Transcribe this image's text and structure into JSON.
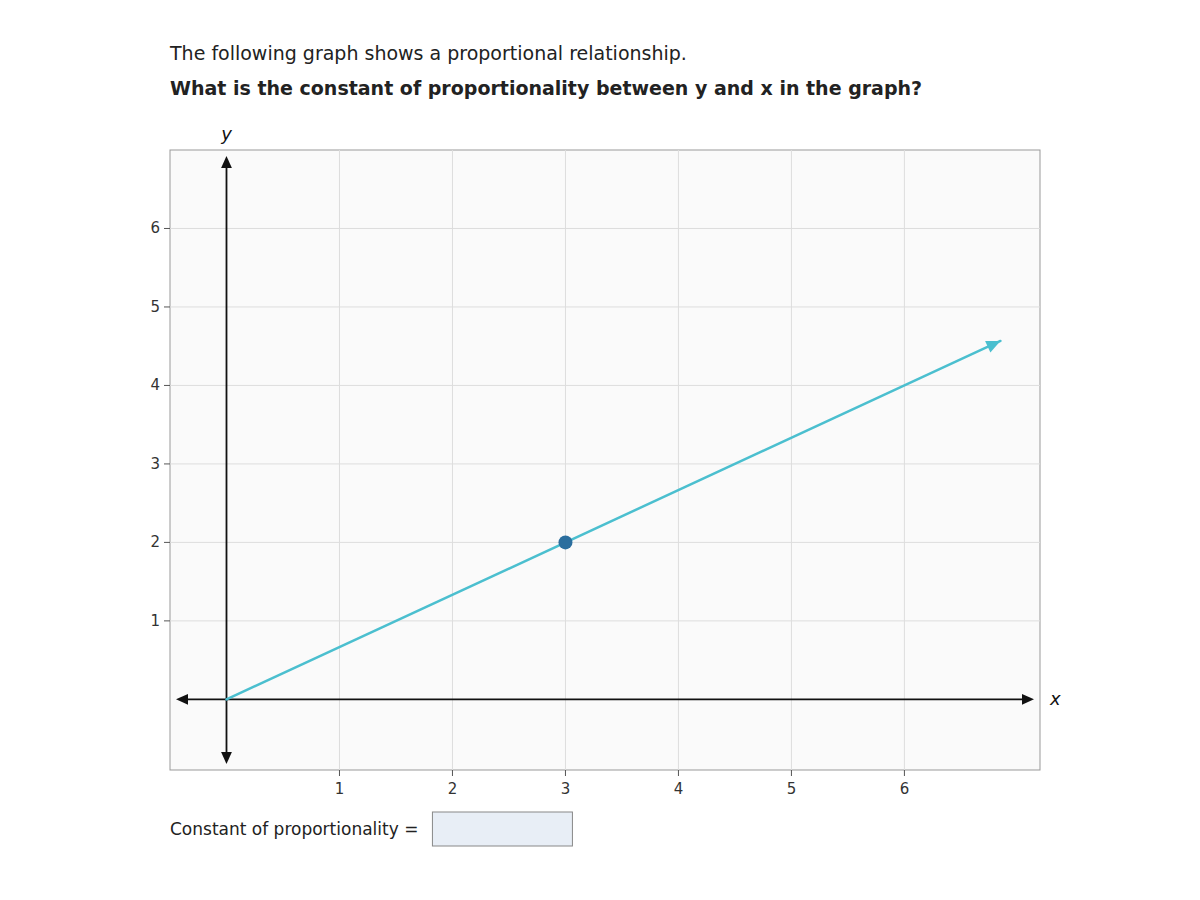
{
  "chart_data": {
    "type": "line",
    "title": "The following graph shows a proportional relationship.",
    "subtitle": "What is the constant of proportionality between y and x in the graph?",
    "xlabel": "x",
    "ylabel": "y",
    "xlim": [
      -0.5,
      7.2
    ],
    "ylim": [
      -0.9,
      7.0
    ],
    "xticks": [
      1,
      2,
      3,
      4,
      5,
      6
    ],
    "yticks": [
      1,
      2,
      3,
      4,
      5,
      6
    ],
    "grid": true,
    "series": [
      {
        "type": "line",
        "color": "#4BBFCF",
        "x": [
          0,
          6.85
        ],
        "values": [
          0,
          4.566895
        ]
      },
      {
        "type": "scatter",
        "color": "#2B6E9E",
        "x": [
          3
        ],
        "values": [
          2
        ]
      }
    ],
    "annotations": [
      {
        "text": "Constant of proportionality ="
      }
    ]
  }
}
